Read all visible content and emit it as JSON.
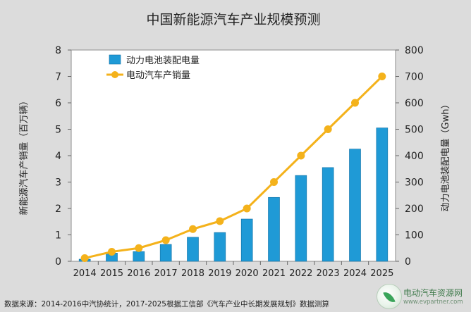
{
  "chart_data": {
    "type": "bar",
    "title": "中国新能源汽车产业规模预测",
    "categories": [
      "2014",
      "2015",
      "2016",
      "2017",
      "2018",
      "2019",
      "2020",
      "2021",
      "2022",
      "2023",
      "2024",
      "2025"
    ],
    "series": [
      {
        "name": "动力电池装配电量",
        "type": "bar",
        "axis": "right",
        "color": "#1f9ad6",
        "values": [
          8,
          31,
          37,
          64,
          91,
          109,
          160,
          242,
          325,
          355,
          425,
          505
        ]
      },
      {
        "name": "电动汽车产销量",
        "type": "line",
        "axis": "left",
        "color": "#f4b21b",
        "values": [
          0.12,
          0.36,
          0.5,
          0.8,
          1.22,
          1.52,
          2.0,
          3.0,
          4.0,
          5.0,
          6.0,
          7.0
        ]
      }
    ],
    "ylabel_left": "新能源汽车产销量（百万辆）",
    "ylabel_right": "动力电池装配电量（Gwh）",
    "ylim_left": [
      0,
      8
    ],
    "ylim_right": [
      0,
      800
    ],
    "yticks_left": [
      "0",
      "1",
      "2",
      "3",
      "4",
      "5",
      "6",
      "7",
      "8"
    ],
    "yticks_right": [
      "0",
      "100",
      "200",
      "300",
      "400",
      "500",
      "600",
      "700",
      "800"
    ],
    "legend_position": "top-left",
    "grid": false
  },
  "footer_note": "数据来源：2014-2016中汽协统计，2017-2025根据工信部《汽车产业中长期发展规划》数据测算",
  "watermark": {
    "title": "电动汽车资源网",
    "url": "www.evpartner.com"
  }
}
